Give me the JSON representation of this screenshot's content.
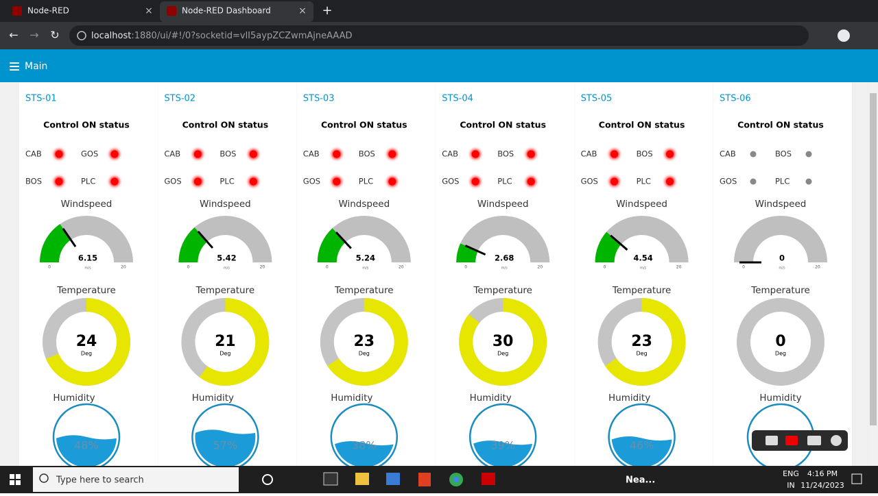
{
  "browser": {
    "tabs": [
      "Node-RED",
      "Node-RED Dashboard"
    ],
    "url_host": "localhost",
    "url_path": ":1880/ui/#!/0?socketid=vlI5aypZCZwmAjneAAAD"
  },
  "header": {
    "title": "Main"
  },
  "temperature_scale": [
    0,
    35
  ],
  "panels": [
    {
      "title": "STS-01",
      "status_title": "Control ON status",
      "indicators": [
        {
          "label": "CAB",
          "color": "#ff0000"
        },
        {
          "label": "GOS",
          "color": "#ff0000"
        },
        {
          "label": "BOS",
          "color": "#ff0000"
        },
        {
          "label": "PLC",
          "color": "#ff0000"
        }
      ],
      "windspeed": {
        "label": "Windspeed",
        "value": 6.15,
        "min": 0,
        "max": 20,
        "unit": "m/s"
      },
      "temperature": {
        "label": "Temperature",
        "value": 24,
        "unit": "Deg"
      },
      "humidity": {
        "label": "Humidity",
        "value": {
          "value": 48,
          "label": "48%"
        }
      }
    },
    {
      "title": "STS-02",
      "status_title": "Control ON status",
      "indicators": [
        {
          "label": "CAB",
          "color": "#ff0000"
        },
        {
          "label": "BOS",
          "color": "#ff0000"
        },
        {
          "label": "GOS",
          "color": "#ff0000"
        },
        {
          "label": "PLC",
          "color": "#ff0000"
        }
      ],
      "windspeed": {
        "label": "Windspeed",
        "value": 5.42,
        "min": 0,
        "max": 20,
        "unit": "m/s"
      },
      "temperature": {
        "label": "Temperature",
        "value": 21,
        "unit": "Deg"
      },
      "humidity": {
        "label": "Humidity",
        "value": {
          "value": 57,
          "label": "57%"
        }
      }
    },
    {
      "title": "STS-03",
      "status_title": "Control ON status",
      "indicators": [
        {
          "label": "CAB",
          "color": "#ff0000"
        },
        {
          "label": "BOS",
          "color": "#ff0000"
        },
        {
          "label": "GOS",
          "color": "#ff0000"
        },
        {
          "label": "PLC",
          "color": "#ff0000"
        }
      ],
      "windspeed": {
        "label": "Windspeed",
        "value": 5.24,
        "min": 0,
        "max": 20,
        "unit": "m/s"
      },
      "temperature": {
        "label": "Temperature",
        "value": 23,
        "unit": "Deg"
      },
      "humidity": {
        "label": "Humidity",
        "value": {
          "value": 38,
          "label": "38%"
        }
      }
    },
    {
      "title": "STS-04",
      "status_title": "Control ON status",
      "indicators": [
        {
          "label": "CAB",
          "color": "#ff0000"
        },
        {
          "label": "BOS",
          "color": "#ff0000"
        },
        {
          "label": "GOS",
          "color": "#ff0000"
        },
        {
          "label": "PLC",
          "color": "#ff0000"
        }
      ],
      "windspeed": {
        "label": "Windspeed",
        "value": 2.68,
        "min": 0,
        "max": 20,
        "unit": "m/s"
      },
      "temperature": {
        "label": "Temperature",
        "value": 30,
        "unit": "Deg"
      },
      "humidity": {
        "label": "Humidity",
        "value": {
          "value": 39,
          "label": "39%"
        }
      }
    },
    {
      "title": "STS-05",
      "status_title": "Control ON status",
      "indicators": [
        {
          "label": "CAB",
          "color": "#ff0000"
        },
        {
          "label": "BOS",
          "color": "#ff0000"
        },
        {
          "label": "GOS",
          "color": "#ff0000"
        },
        {
          "label": "PLC",
          "color": "#ff0000"
        }
      ],
      "windspeed": {
        "label": "Windspeed",
        "value": 4.54,
        "min": 0,
        "max": 20,
        "unit": "m/s"
      },
      "temperature": {
        "label": "Temperature",
        "value": 23,
        "unit": "Deg"
      },
      "humidity": {
        "label": "Humidity",
        "value": {
          "value": 46,
          "label": "46%"
        }
      }
    },
    {
      "title": "STS-06",
      "status_title": "Control ON status",
      "indicators": [
        {
          "label": "CAB",
          "color": "#888888"
        },
        {
          "label": "BOS",
          "color": "#888888"
        },
        {
          "label": "GOS",
          "color": "#888888"
        },
        {
          "label": "PLC",
          "color": "#888888"
        }
      ],
      "windspeed": {
        "label": "Windspeed",
        "value": 0,
        "min": 0,
        "max": 20,
        "unit": "m/s"
      },
      "temperature": {
        "label": "Temperature",
        "value": 0,
        "unit": "Deg"
      },
      "humidity": {
        "label": "Humidity",
        "value": null
      }
    }
  ],
  "taskbar": {
    "search": "Type here to search",
    "weather": "Nea...",
    "lang": "ENG",
    "region": "IN",
    "time": "4:16 PM",
    "date": "11/24/2023"
  }
}
